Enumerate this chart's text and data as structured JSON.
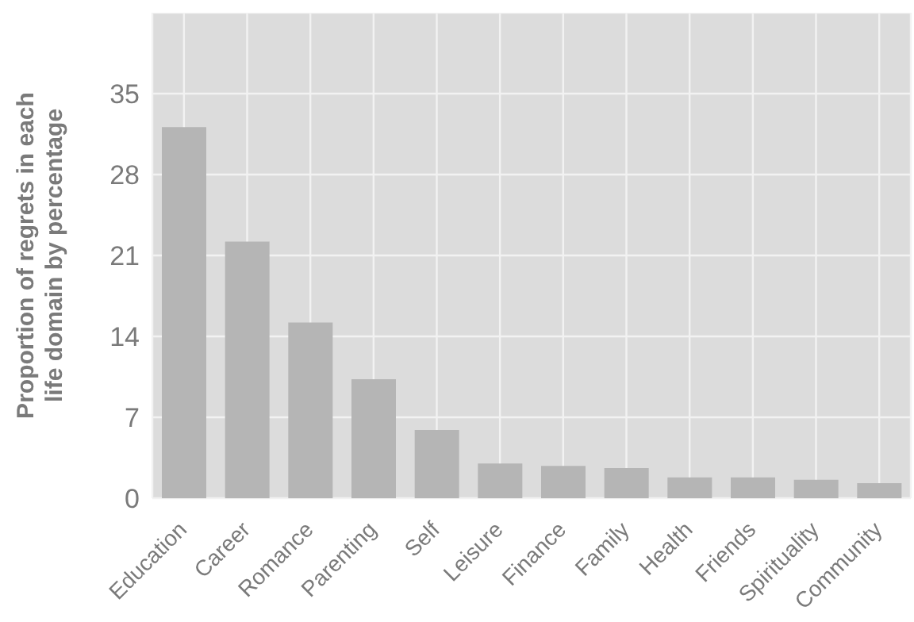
{
  "chart_data": {
    "type": "bar",
    "ylabel": "Proportion of regrets in each\nlife domain by percentage",
    "categories": [
      "Education",
      "Career",
      "Romance",
      "Parenting",
      "Self",
      "Leisure",
      "Finance",
      "Family",
      "Health",
      "Friends",
      "Spirituality",
      "Community"
    ],
    "values": [
      32.1,
      22.2,
      15.2,
      10.3,
      5.9,
      3.0,
      2.8,
      2.6,
      1.8,
      1.8,
      1.6,
      1.3
    ],
    "color": "#b5b5b5",
    "ylim": [
      0,
      42
    ],
    "yticks": [
      0,
      7,
      14,
      21,
      28,
      35
    ],
    "grid": true
  }
}
